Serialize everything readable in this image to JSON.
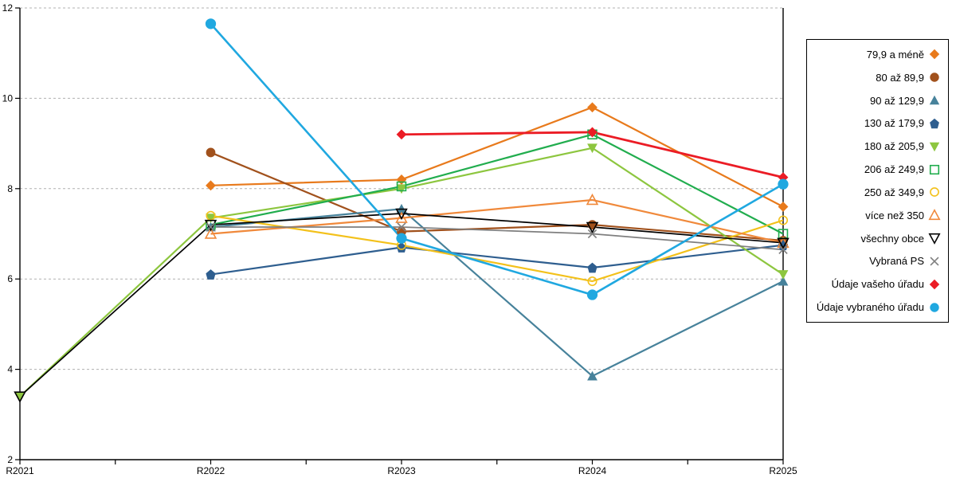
{
  "page": {
    "background": "#ffffff"
  },
  "chart_data": {
    "type": "line",
    "categories": [
      "R2021",
      "R2022",
      "R2023",
      "R2024",
      "R2025"
    ],
    "xlabel": "",
    "ylabel": "",
    "ylim": [
      2,
      12
    ],
    "y_ticks": [
      2,
      4,
      6,
      8,
      10,
      12
    ],
    "x_minor_ticks_between_categories": true,
    "grid": {
      "horizontal": true,
      "style": "dashed",
      "color": "#b0b0b0"
    },
    "legend_position": "right",
    "axis_color": "#000000",
    "series": [
      {
        "name": "79,9 a méně",
        "marker": "diamond",
        "color": "#E87A1C",
        "line_width": 2.2,
        "values": [
          null,
          8.07,
          8.2,
          9.8,
          7.6
        ]
      },
      {
        "name": "80 až 89,9",
        "marker": "circle",
        "color": "#A1511C",
        "line_width": 2.2,
        "values": [
          null,
          8.8,
          7.05,
          7.2,
          6.85
        ]
      },
      {
        "name": "90 až 129,9",
        "marker": "triangle-up",
        "color": "#47829B",
        "line_width": 2.2,
        "values": [
          null,
          7.15,
          7.55,
          3.85,
          5.95
        ]
      },
      {
        "name": "130 až 179,9",
        "marker": "pentagon",
        "color": "#2E5E8F",
        "line_width": 2.2,
        "values": [
          null,
          6.1,
          6.7,
          6.25,
          6.75
        ]
      },
      {
        "name": "180 až 205,9",
        "marker": "triangle-down",
        "color": "#8DC63F",
        "line_width": 2.2,
        "values": [
          3.4,
          7.35,
          8.0,
          8.9,
          6.1
        ]
      },
      {
        "name": "206 až 249,9",
        "marker": "square-open",
        "color": "#21AD4E",
        "line_width": 2.2,
        "values": [
          null,
          7.2,
          8.05,
          9.2,
          7.0
        ]
      },
      {
        "name": "250 až 349,9",
        "marker": "circle-open",
        "color": "#F3C11B",
        "line_width": 2.2,
        "values": [
          null,
          7.4,
          6.75,
          5.95,
          7.3
        ]
      },
      {
        "name": "více než 350",
        "marker": "triangle-up-open",
        "color": "#F0893B",
        "line_width": 2.2,
        "values": [
          null,
          7.0,
          7.35,
          7.75,
          6.8
        ]
      },
      {
        "name": "všechny obce",
        "marker": "triangle-down-open",
        "color": "#000000",
        "line_width": 1.7,
        "values": [
          3.4,
          7.2,
          7.45,
          7.15,
          6.8
        ]
      },
      {
        "name": "Vybraná PS",
        "marker": "x",
        "color": "#7F7F7F",
        "line_width": 1.7,
        "values": [
          null,
          7.15,
          7.15,
          7.0,
          6.65
        ]
      },
      {
        "name": "Údaje vašeho úřadu",
        "marker": "diamond",
        "color": "#EB1C25",
        "line_width": 2.8,
        "values": [
          null,
          null,
          9.2,
          9.25,
          8.25
        ]
      },
      {
        "name": "Údaje vybraného úřadu",
        "marker": "circle",
        "color": "#20A8E0",
        "line_width": 2.6,
        "values": [
          null,
          11.65,
          6.9,
          5.65,
          8.1
        ]
      }
    ]
  }
}
